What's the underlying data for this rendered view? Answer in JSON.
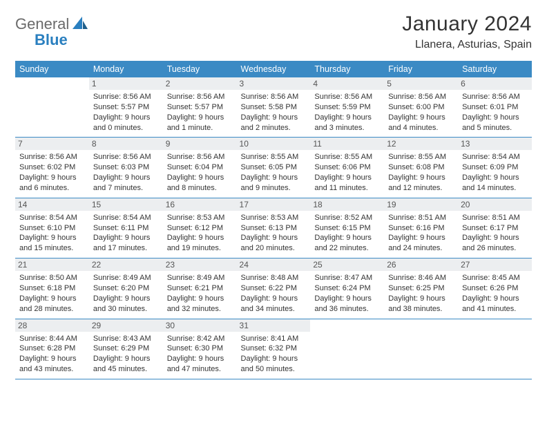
{
  "logo": {
    "word1": "General",
    "word2": "Blue"
  },
  "title": {
    "month": "January 2024",
    "location": "Llanera, Asturias, Spain"
  },
  "theme": {
    "header_bg": "#3b8ac4",
    "header_text": "#ffffff",
    "daybar_bg": "#eceef0",
    "cell_border": "#3b8ac4",
    "body_text": "#333333",
    "page_bg": "#ffffff",
    "logo_gray": "#6a6a6a",
    "logo_blue": "#2a7fbf"
  },
  "weekdays": [
    "Sunday",
    "Monday",
    "Tuesday",
    "Wednesday",
    "Thursday",
    "Friday",
    "Saturday"
  ],
  "weeks": [
    [
      null,
      {
        "date": "1",
        "sunrise": "8:56 AM",
        "sunset": "5:57 PM",
        "daylight": "9 hours and 0 minutes."
      },
      {
        "date": "2",
        "sunrise": "8:56 AM",
        "sunset": "5:57 PM",
        "daylight": "9 hours and 1 minute."
      },
      {
        "date": "3",
        "sunrise": "8:56 AM",
        "sunset": "5:58 PM",
        "daylight": "9 hours and 2 minutes."
      },
      {
        "date": "4",
        "sunrise": "8:56 AM",
        "sunset": "5:59 PM",
        "daylight": "9 hours and 3 minutes."
      },
      {
        "date": "5",
        "sunrise": "8:56 AM",
        "sunset": "6:00 PM",
        "daylight": "9 hours and 4 minutes."
      },
      {
        "date": "6",
        "sunrise": "8:56 AM",
        "sunset": "6:01 PM",
        "daylight": "9 hours and 5 minutes."
      }
    ],
    [
      {
        "date": "7",
        "sunrise": "8:56 AM",
        "sunset": "6:02 PM",
        "daylight": "9 hours and 6 minutes."
      },
      {
        "date": "8",
        "sunrise": "8:56 AM",
        "sunset": "6:03 PM",
        "daylight": "9 hours and 7 minutes."
      },
      {
        "date": "9",
        "sunrise": "8:56 AM",
        "sunset": "6:04 PM",
        "daylight": "9 hours and 8 minutes."
      },
      {
        "date": "10",
        "sunrise": "8:55 AM",
        "sunset": "6:05 PM",
        "daylight": "9 hours and 9 minutes."
      },
      {
        "date": "11",
        "sunrise": "8:55 AM",
        "sunset": "6:06 PM",
        "daylight": "9 hours and 11 minutes."
      },
      {
        "date": "12",
        "sunrise": "8:55 AM",
        "sunset": "6:08 PM",
        "daylight": "9 hours and 12 minutes."
      },
      {
        "date": "13",
        "sunrise": "8:54 AM",
        "sunset": "6:09 PM",
        "daylight": "9 hours and 14 minutes."
      }
    ],
    [
      {
        "date": "14",
        "sunrise": "8:54 AM",
        "sunset": "6:10 PM",
        "daylight": "9 hours and 15 minutes."
      },
      {
        "date": "15",
        "sunrise": "8:54 AM",
        "sunset": "6:11 PM",
        "daylight": "9 hours and 17 minutes."
      },
      {
        "date": "16",
        "sunrise": "8:53 AM",
        "sunset": "6:12 PM",
        "daylight": "9 hours and 19 minutes."
      },
      {
        "date": "17",
        "sunrise": "8:53 AM",
        "sunset": "6:13 PM",
        "daylight": "9 hours and 20 minutes."
      },
      {
        "date": "18",
        "sunrise": "8:52 AM",
        "sunset": "6:15 PM",
        "daylight": "9 hours and 22 minutes."
      },
      {
        "date": "19",
        "sunrise": "8:51 AM",
        "sunset": "6:16 PM",
        "daylight": "9 hours and 24 minutes."
      },
      {
        "date": "20",
        "sunrise": "8:51 AM",
        "sunset": "6:17 PM",
        "daylight": "9 hours and 26 minutes."
      }
    ],
    [
      {
        "date": "21",
        "sunrise": "8:50 AM",
        "sunset": "6:18 PM",
        "daylight": "9 hours and 28 minutes."
      },
      {
        "date": "22",
        "sunrise": "8:49 AM",
        "sunset": "6:20 PM",
        "daylight": "9 hours and 30 minutes."
      },
      {
        "date": "23",
        "sunrise": "8:49 AM",
        "sunset": "6:21 PM",
        "daylight": "9 hours and 32 minutes."
      },
      {
        "date": "24",
        "sunrise": "8:48 AM",
        "sunset": "6:22 PM",
        "daylight": "9 hours and 34 minutes."
      },
      {
        "date": "25",
        "sunrise": "8:47 AM",
        "sunset": "6:24 PM",
        "daylight": "9 hours and 36 minutes."
      },
      {
        "date": "26",
        "sunrise": "8:46 AM",
        "sunset": "6:25 PM",
        "daylight": "9 hours and 38 minutes."
      },
      {
        "date": "27",
        "sunrise": "8:45 AM",
        "sunset": "6:26 PM",
        "daylight": "9 hours and 41 minutes."
      }
    ],
    [
      {
        "date": "28",
        "sunrise": "8:44 AM",
        "sunset": "6:28 PM",
        "daylight": "9 hours and 43 minutes."
      },
      {
        "date": "29",
        "sunrise": "8:43 AM",
        "sunset": "6:29 PM",
        "daylight": "9 hours and 45 minutes."
      },
      {
        "date": "30",
        "sunrise": "8:42 AM",
        "sunset": "6:30 PM",
        "daylight": "9 hours and 47 minutes."
      },
      {
        "date": "31",
        "sunrise": "8:41 AM",
        "sunset": "6:32 PM",
        "daylight": "9 hours and 50 minutes."
      },
      null,
      null,
      null
    ]
  ],
  "labels": {
    "sunrise": "Sunrise:",
    "sunset": "Sunset:",
    "daylight": "Daylight:"
  }
}
